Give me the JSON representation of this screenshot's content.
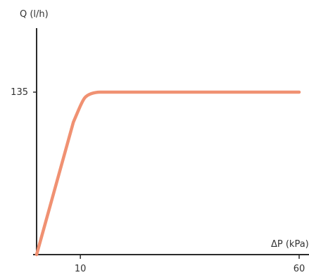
{
  "chart_data": {
    "type": "line",
    "title": "",
    "xlabel": "ΔP (kPa)",
    "ylabel": "Q (l/h)",
    "x": [
      0,
      8.4,
      10.5,
      11.5,
      13.5,
      15.5,
      20,
      60
    ],
    "y": [
      0,
      110,
      128,
      132.5,
      135,
      135,
      135,
      135
    ],
    "xlim": [
      0,
      60
    ],
    "ylim": [
      0,
      135
    ],
    "x_ticks": [
      {
        "value": 10,
        "label": "10"
      },
      {
        "value": 60,
        "label": "60"
      }
    ],
    "y_ticks": [
      {
        "value": 135,
        "label": "135"
      }
    ],
    "grid": false,
    "legend": "none",
    "colors": {
      "series": "#f09172",
      "axis": "#2b2b2b",
      "text": "#333333"
    }
  }
}
